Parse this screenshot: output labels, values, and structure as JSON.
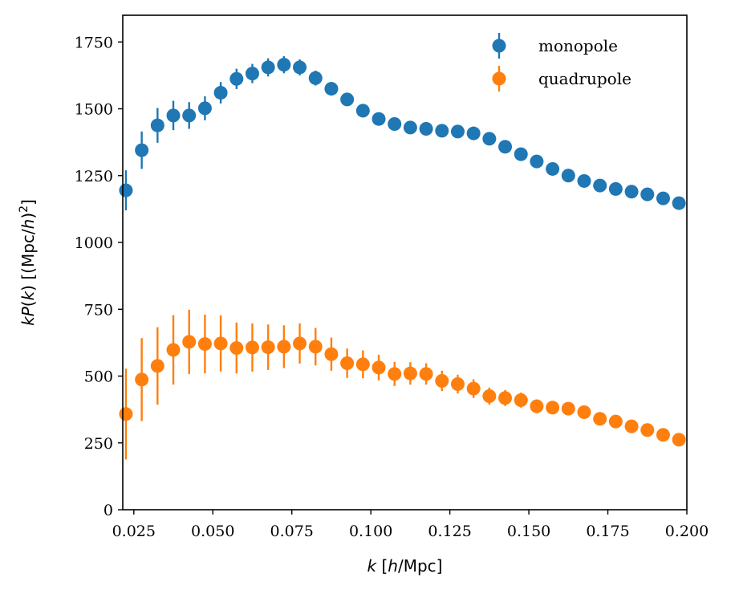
{
  "chart_data": {
    "type": "scatter",
    "title": "",
    "xlabel": "k [h/Mpc]",
    "ylabel": "kP(k) [(Mpc/h)^2]",
    "xlim": [
      0.0215,
      0.2
    ],
    "ylim": [
      0,
      1850
    ],
    "xticks": [
      "0.025",
      "0.050",
      "0.075",
      "0.100",
      "0.125",
      "0.150",
      "0.175",
      "0.200"
    ],
    "yticks": [
      "0",
      "250",
      "500",
      "750",
      "1000",
      "1250",
      "1500",
      "1750"
    ],
    "legend_position": "top-right",
    "series": [
      {
        "name": "monopole",
        "color": "#1f77b4",
        "x": [
          0.0225,
          0.0275,
          0.0325,
          0.0375,
          0.0425,
          0.0475,
          0.0525,
          0.0575,
          0.0625,
          0.0675,
          0.0725,
          0.0775,
          0.0825,
          0.0875,
          0.0925,
          0.0975,
          0.1025,
          0.1075,
          0.1125,
          0.1175,
          0.1225,
          0.1275,
          0.1325,
          0.1375,
          0.1425,
          0.1475,
          0.1525,
          0.1575,
          0.1625,
          0.1675,
          0.1725,
          0.1775,
          0.1825,
          0.1875,
          0.1925,
          0.1975
        ],
        "y": [
          1195,
          1345,
          1438,
          1475,
          1475,
          1502,
          1560,
          1612,
          1632,
          1655,
          1665,
          1655,
          1615,
          1575,
          1535,
          1493,
          1462,
          1443,
          1430,
          1425,
          1418,
          1415,
          1408,
          1388,
          1358,
          1330,
          1303,
          1275,
          1250,
          1230,
          1213,
          1200,
          1190,
          1180,
          1165,
          1147
        ],
        "yerr": [
          75,
          70,
          65,
          55,
          50,
          45,
          40,
          38,
          36,
          34,
          32,
          30,
          28,
          25,
          20,
          15,
          12,
          10,
          8,
          8,
          6,
          6,
          6,
          6,
          6,
          6,
          6,
          6,
          6,
          6,
          6,
          6,
          6,
          6,
          6,
          6
        ]
      },
      {
        "name": "quadrupole",
        "color": "#ff7f0e",
        "x": [
          0.0225,
          0.0275,
          0.0325,
          0.0375,
          0.0425,
          0.0475,
          0.0525,
          0.0575,
          0.0625,
          0.0675,
          0.0725,
          0.0775,
          0.0825,
          0.0875,
          0.0925,
          0.0975,
          0.1025,
          0.1075,
          0.1125,
          0.1175,
          0.1225,
          0.1275,
          0.1325,
          0.1375,
          0.1425,
          0.1475,
          0.1525,
          0.1575,
          0.1625,
          0.1675,
          0.1725,
          0.1775,
          0.1825,
          0.1875,
          0.1925,
          0.1975
        ],
        "y": [
          358,
          487,
          538,
          598,
          628,
          620,
          622,
          605,
          607,
          608,
          610,
          622,
          610,
          582,
          548,
          544,
          532,
          508,
          510,
          508,
          482,
          470,
          453,
          425,
          418,
          410,
          387,
          382,
          378,
          365,
          340,
          330,
          312,
          298,
          280,
          262
        ],
        "yerr": [
          170,
          155,
          145,
          130,
          120,
          110,
          105,
          95,
          90,
          85,
          80,
          75,
          70,
          62,
          55,
          52,
          48,
          45,
          42,
          40,
          38,
          35,
          35,
          32,
          30,
          28,
          26,
          25,
          24,
          22,
          20,
          18,
          16,
          16,
          14,
          12
        ]
      }
    ]
  }
}
